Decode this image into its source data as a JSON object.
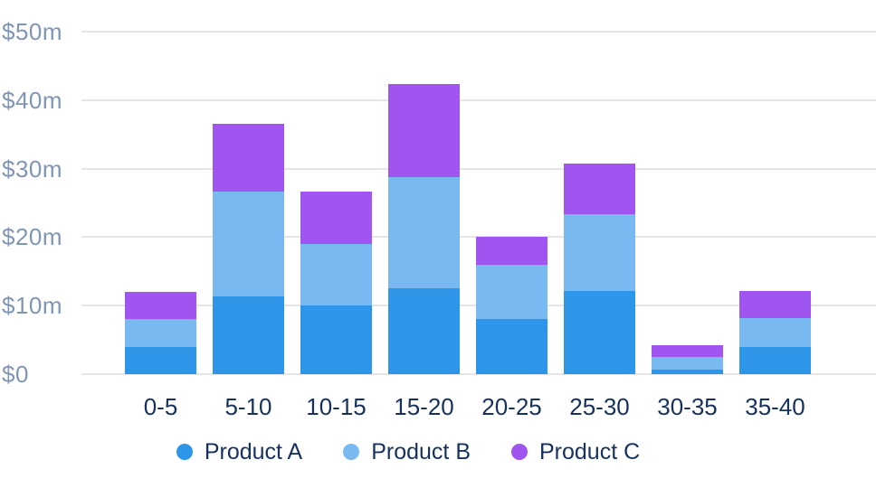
{
  "chart_data": {
    "type": "bar",
    "stacked": true,
    "title": "",
    "xlabel": "",
    "ylabel": "",
    "categories": [
      "0-5",
      "5-10",
      "10-15",
      "15-20",
      "20-25",
      "25-30",
      "30-35",
      "35-40"
    ],
    "series": [
      {
        "name": "Product A",
        "color": "#2e96e8",
        "values": [
          4.0,
          11.4,
          10.0,
          12.5,
          8.0,
          12.2,
          0.7,
          4.0
        ]
      },
      {
        "name": "Product B",
        "color": "#78b9f1",
        "values": [
          4.0,
          15.2,
          9.0,
          16.3,
          8.0,
          11.2,
          1.8,
          4.2
        ]
      },
      {
        "name": "Product C",
        "color": "#a055f0",
        "values": [
          4.0,
          9.9,
          7.7,
          13.5,
          4.0,
          7.4,
          1.7,
          4.0
        ]
      }
    ],
    "stack_totals": [
      12.0,
      36.5,
      26.7,
      42.3,
      20.0,
      30.8,
      4.2,
      12.2
    ],
    "ylim": [
      0,
      50
    ],
    "yticks": {
      "values": [
        0,
        10,
        20,
        30,
        40,
        50
      ],
      "labels": [
        "$0",
        "$10m",
        "$20m",
        "$30m",
        "$40m",
        "$50m"
      ]
    },
    "grid": "horizontal",
    "legend_position": "bottom"
  },
  "colors": {
    "background": "#ffffff",
    "gridline": "#e6e4e4",
    "ytick_text": "#8096b3",
    "xtick_text": "#16325c",
    "legend_text": "#16325c"
  }
}
